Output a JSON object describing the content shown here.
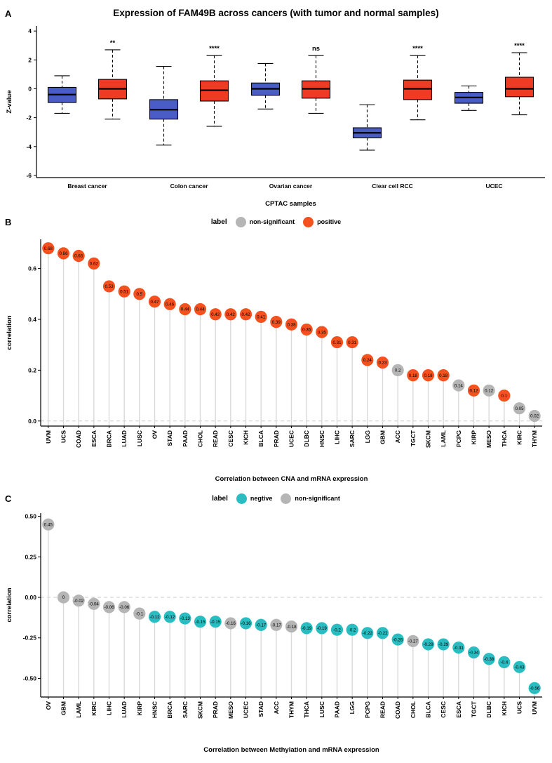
{
  "panels": [
    {
      "letter": "A"
    },
    {
      "letter": "B"
    },
    {
      "letter": "C"
    }
  ],
  "chart_data": [
    {
      "type": "boxplot",
      "title": "Expression of FAM49B across cancers (with tumor and normal samples)",
      "ylabel": "Z-value",
      "xlabel": "CPTAC samples",
      "ylim": [
        -6.15,
        4.35
      ],
      "yticks": [
        {
          "v": 4,
          "label": "4"
        },
        {
          "v": 2,
          "label": "2"
        },
        {
          "v": 0,
          "label": "0"
        },
        {
          "v": -2,
          "label": "-2"
        },
        {
          "v": -4,
          "label": "-4"
        },
        {
          "v": -6,
          "label": "-6"
        }
      ],
      "colors": {
        "normal": "#4A5CC6",
        "tumor": "#EF3B24"
      },
      "groups": [
        {
          "label": "Breast cancer",
          "significance": "**",
          "normal": {
            "low": -1.7,
            "q1": -0.95,
            "median": -0.4,
            "q3": 0.1,
            "high": 0.9
          },
          "tumor": {
            "low": -2.1,
            "q1": -0.7,
            "median": 0,
            "q3": 0.65,
            "high": 2.7
          }
        },
        {
          "label": "Colon cancer",
          "significance": "****",
          "normal": {
            "low": -3.9,
            "q1": -2.1,
            "median": -1.45,
            "q3": -0.75,
            "high": 1.55
          },
          "tumor": {
            "low": -2.6,
            "q1": -0.85,
            "median": -0.1,
            "q3": 0.55,
            "high": 2.3
          }
        },
        {
          "label": "Ovarian cancer",
          "significance": "ns",
          "normal": {
            "low": -1.4,
            "q1": -0.45,
            "median": 0,
            "q3": 0.4,
            "high": 1.75
          },
          "tumor": {
            "low": -1.7,
            "q1": -0.65,
            "median": 0,
            "q3": 0.55,
            "high": 2.3
          }
        },
        {
          "label": "Clear cell RCC",
          "significance": "****",
          "normal": {
            "low": -4.25,
            "q1": -3.4,
            "median": -3.05,
            "q3": -2.7,
            "high": -1.1
          },
          "tumor": {
            "low": -2.15,
            "q1": -0.75,
            "median": 0,
            "q3": 0.6,
            "high": 2.3
          }
        },
        {
          "label": "UCEC",
          "significance": "****",
          "normal": {
            "low": -1.5,
            "q1": -1.0,
            "median": -0.6,
            "q3": -0.25,
            "high": 0.2
          },
          "tumor": {
            "low": -1.8,
            "q1": -0.55,
            "median": 0,
            "q3": 0.8,
            "high": 2.5
          }
        }
      ]
    },
    {
      "type": "lollipop",
      "legend_title": "label",
      "legend": [
        {
          "label": "non-significant",
          "group": "non-significant"
        },
        {
          "label": "positive",
          "group": "positive"
        }
      ],
      "colors": {
        "non-significant": "#B5B5B5",
        "positive": "#F4511E"
      },
      "ylabel": "correlation",
      "xlabel": "Correlation between CNA and mRNA expression",
      "ylim": [
        -0.02,
        0.715
      ],
      "yticks": [
        {
          "v": 0.6,
          "label": "0.6"
        },
        {
          "v": 0.4,
          "label": "0.4"
        },
        {
          "v": 0.2,
          "label": "0.2"
        },
        {
          "v": 0,
          "label": "0.0"
        }
      ],
      "points": [
        {
          "label": "UVM",
          "value": 0.68,
          "group": "positive"
        },
        {
          "label": "UCS",
          "value": 0.66,
          "group": "positive"
        },
        {
          "label": "COAD",
          "value": 0.65,
          "group": "positive"
        },
        {
          "label": "ESCA",
          "value": 0.62,
          "group": "positive"
        },
        {
          "label": "BRCA",
          "value": 0.53,
          "group": "positive"
        },
        {
          "label": "LUAD",
          "value": 0.51,
          "group": "positive"
        },
        {
          "label": "LUSC",
          "value": 0.5,
          "group": "positive"
        },
        {
          "label": "OV",
          "value": 0.47,
          "group": "positive"
        },
        {
          "label": "STAD",
          "value": 0.46,
          "group": "positive"
        },
        {
          "label": "PAAD",
          "value": 0.44,
          "group": "positive"
        },
        {
          "label": "CHOL",
          "value": 0.44,
          "group": "positive"
        },
        {
          "label": "READ",
          "value": 0.42,
          "group": "positive"
        },
        {
          "label": "CESC",
          "value": 0.42,
          "group": "positive"
        },
        {
          "label": "KICH",
          "value": 0.42,
          "group": "positive"
        },
        {
          "label": "BLCA",
          "value": 0.41,
          "group": "positive"
        },
        {
          "label": "PRAD",
          "value": 0.39,
          "group": "positive"
        },
        {
          "label": "UCEC",
          "value": 0.38,
          "group": "positive"
        },
        {
          "label": "DLBC",
          "value": 0.36,
          "group": "positive"
        },
        {
          "label": "HNSC",
          "value": 0.35,
          "group": "positive"
        },
        {
          "label": "LIHC",
          "value": 0.31,
          "group": "positive"
        },
        {
          "label": "SARC",
          "value": 0.31,
          "group": "positive"
        },
        {
          "label": "LGG",
          "value": 0.24,
          "group": "positive"
        },
        {
          "label": "GBM",
          "value": 0.23,
          "group": "positive"
        },
        {
          "label": "ACC",
          "value": 0.2,
          "group": "non-significant"
        },
        {
          "label": "TGCT",
          "value": 0.18,
          "group": "positive"
        },
        {
          "label": "SKCM",
          "value": 0.18,
          "group": "positive"
        },
        {
          "label": "LAML",
          "value": 0.18,
          "group": "positive"
        },
        {
          "label": "PCPG",
          "value": 0.14,
          "group": "non-significant"
        },
        {
          "label": "KIRP",
          "value": 0.12,
          "group": "positive"
        },
        {
          "label": "MESO",
          "value": 0.12,
          "group": "non-significant"
        },
        {
          "label": "THCA",
          "value": 0.1,
          "group": "positive"
        },
        {
          "label": "KIRC",
          "value": 0.05,
          "group": "non-significant"
        },
        {
          "label": "THYM",
          "value": 0.02,
          "group": "non-significant"
        }
      ]
    },
    {
      "type": "lollipop",
      "legend_title": "label",
      "legend": [
        {
          "label": "negtive",
          "group": "negative"
        },
        {
          "label": "non-significant",
          "group": "non-significant"
        }
      ],
      "colors": {
        "negative": "#29BDC1",
        "non-significant": "#B5B5B5"
      },
      "ylabel": "correlation",
      "xlabel": "Correlation between Methylation and mRNA expression",
      "ylim": [
        -0.615,
        0.52
      ],
      "yticks": [
        {
          "v": 0.5,
          "label": "0.50"
        },
        {
          "v": 0.25,
          "label": "0.25"
        },
        {
          "v": 0,
          "label": "0.00"
        },
        {
          "v": -0.25,
          "label": "-0.25"
        },
        {
          "v": -0.5,
          "label": "-0.50"
        }
      ],
      "points": [
        {
          "label": "OV",
          "value": 0.45,
          "group": "non-significant"
        },
        {
          "label": "GBM",
          "value": 0,
          "group": "non-significant"
        },
        {
          "label": "LAML",
          "value": -0.02,
          "group": "non-significant"
        },
        {
          "label": "KIRC",
          "value": -0.04,
          "group": "non-significant"
        },
        {
          "label": "LIHC",
          "value": -0.06,
          "group": "non-significant"
        },
        {
          "label": "LUAD",
          "value": -0.06,
          "group": "non-significant"
        },
        {
          "label": "KIRP",
          "value": -0.1,
          "group": "non-significant"
        },
        {
          "label": "HNSC",
          "value": -0.12,
          "group": "negative"
        },
        {
          "label": "BRCA",
          "value": -0.12,
          "group": "negative"
        },
        {
          "label": "SARC",
          "value": -0.13,
          "group": "negative"
        },
        {
          "label": "SKCM",
          "value": -0.15,
          "group": "negative"
        },
        {
          "label": "PRAD",
          "value": -0.15,
          "group": "negative"
        },
        {
          "label": "MESO",
          "value": -0.16,
          "group": "non-significant"
        },
        {
          "label": "UCEC",
          "value": -0.16,
          "group": "negative"
        },
        {
          "label": "STAD",
          "value": -0.17,
          "group": "negative"
        },
        {
          "label": "ACC",
          "value": -0.17,
          "group": "non-significant"
        },
        {
          "label": "THYM",
          "value": -0.18,
          "group": "non-significant"
        },
        {
          "label": "THCA",
          "value": -0.19,
          "group": "negative"
        },
        {
          "label": "LUSC",
          "value": -0.19,
          "group": "negative"
        },
        {
          "label": "PAAD",
          "value": -0.2,
          "group": "negative"
        },
        {
          "label": "LGG",
          "value": -0.2,
          "group": "negative"
        },
        {
          "label": "PCPG",
          "value": -0.22,
          "group": "negative"
        },
        {
          "label": "READ",
          "value": -0.22,
          "group": "negative"
        },
        {
          "label": "COAD",
          "value": -0.26,
          "group": "negative"
        },
        {
          "label": "CHOL",
          "value": -0.27,
          "group": "non-significant"
        },
        {
          "label": "BLCA",
          "value": -0.29,
          "group": "negative"
        },
        {
          "label": "CESC",
          "value": -0.29,
          "group": "negative"
        },
        {
          "label": "ESCA",
          "value": -0.31,
          "group": "negative"
        },
        {
          "label": "TGCT",
          "value": -0.34,
          "group": "negative"
        },
        {
          "label": "DLBC",
          "value": -0.38,
          "group": "negative"
        },
        {
          "label": "KICH",
          "value": -0.4,
          "group": "negative"
        },
        {
          "label": "UCS",
          "value": -0.43,
          "group": "negative"
        },
        {
          "label": "UVM",
          "value": -0.56,
          "group": "negative"
        }
      ]
    }
  ]
}
